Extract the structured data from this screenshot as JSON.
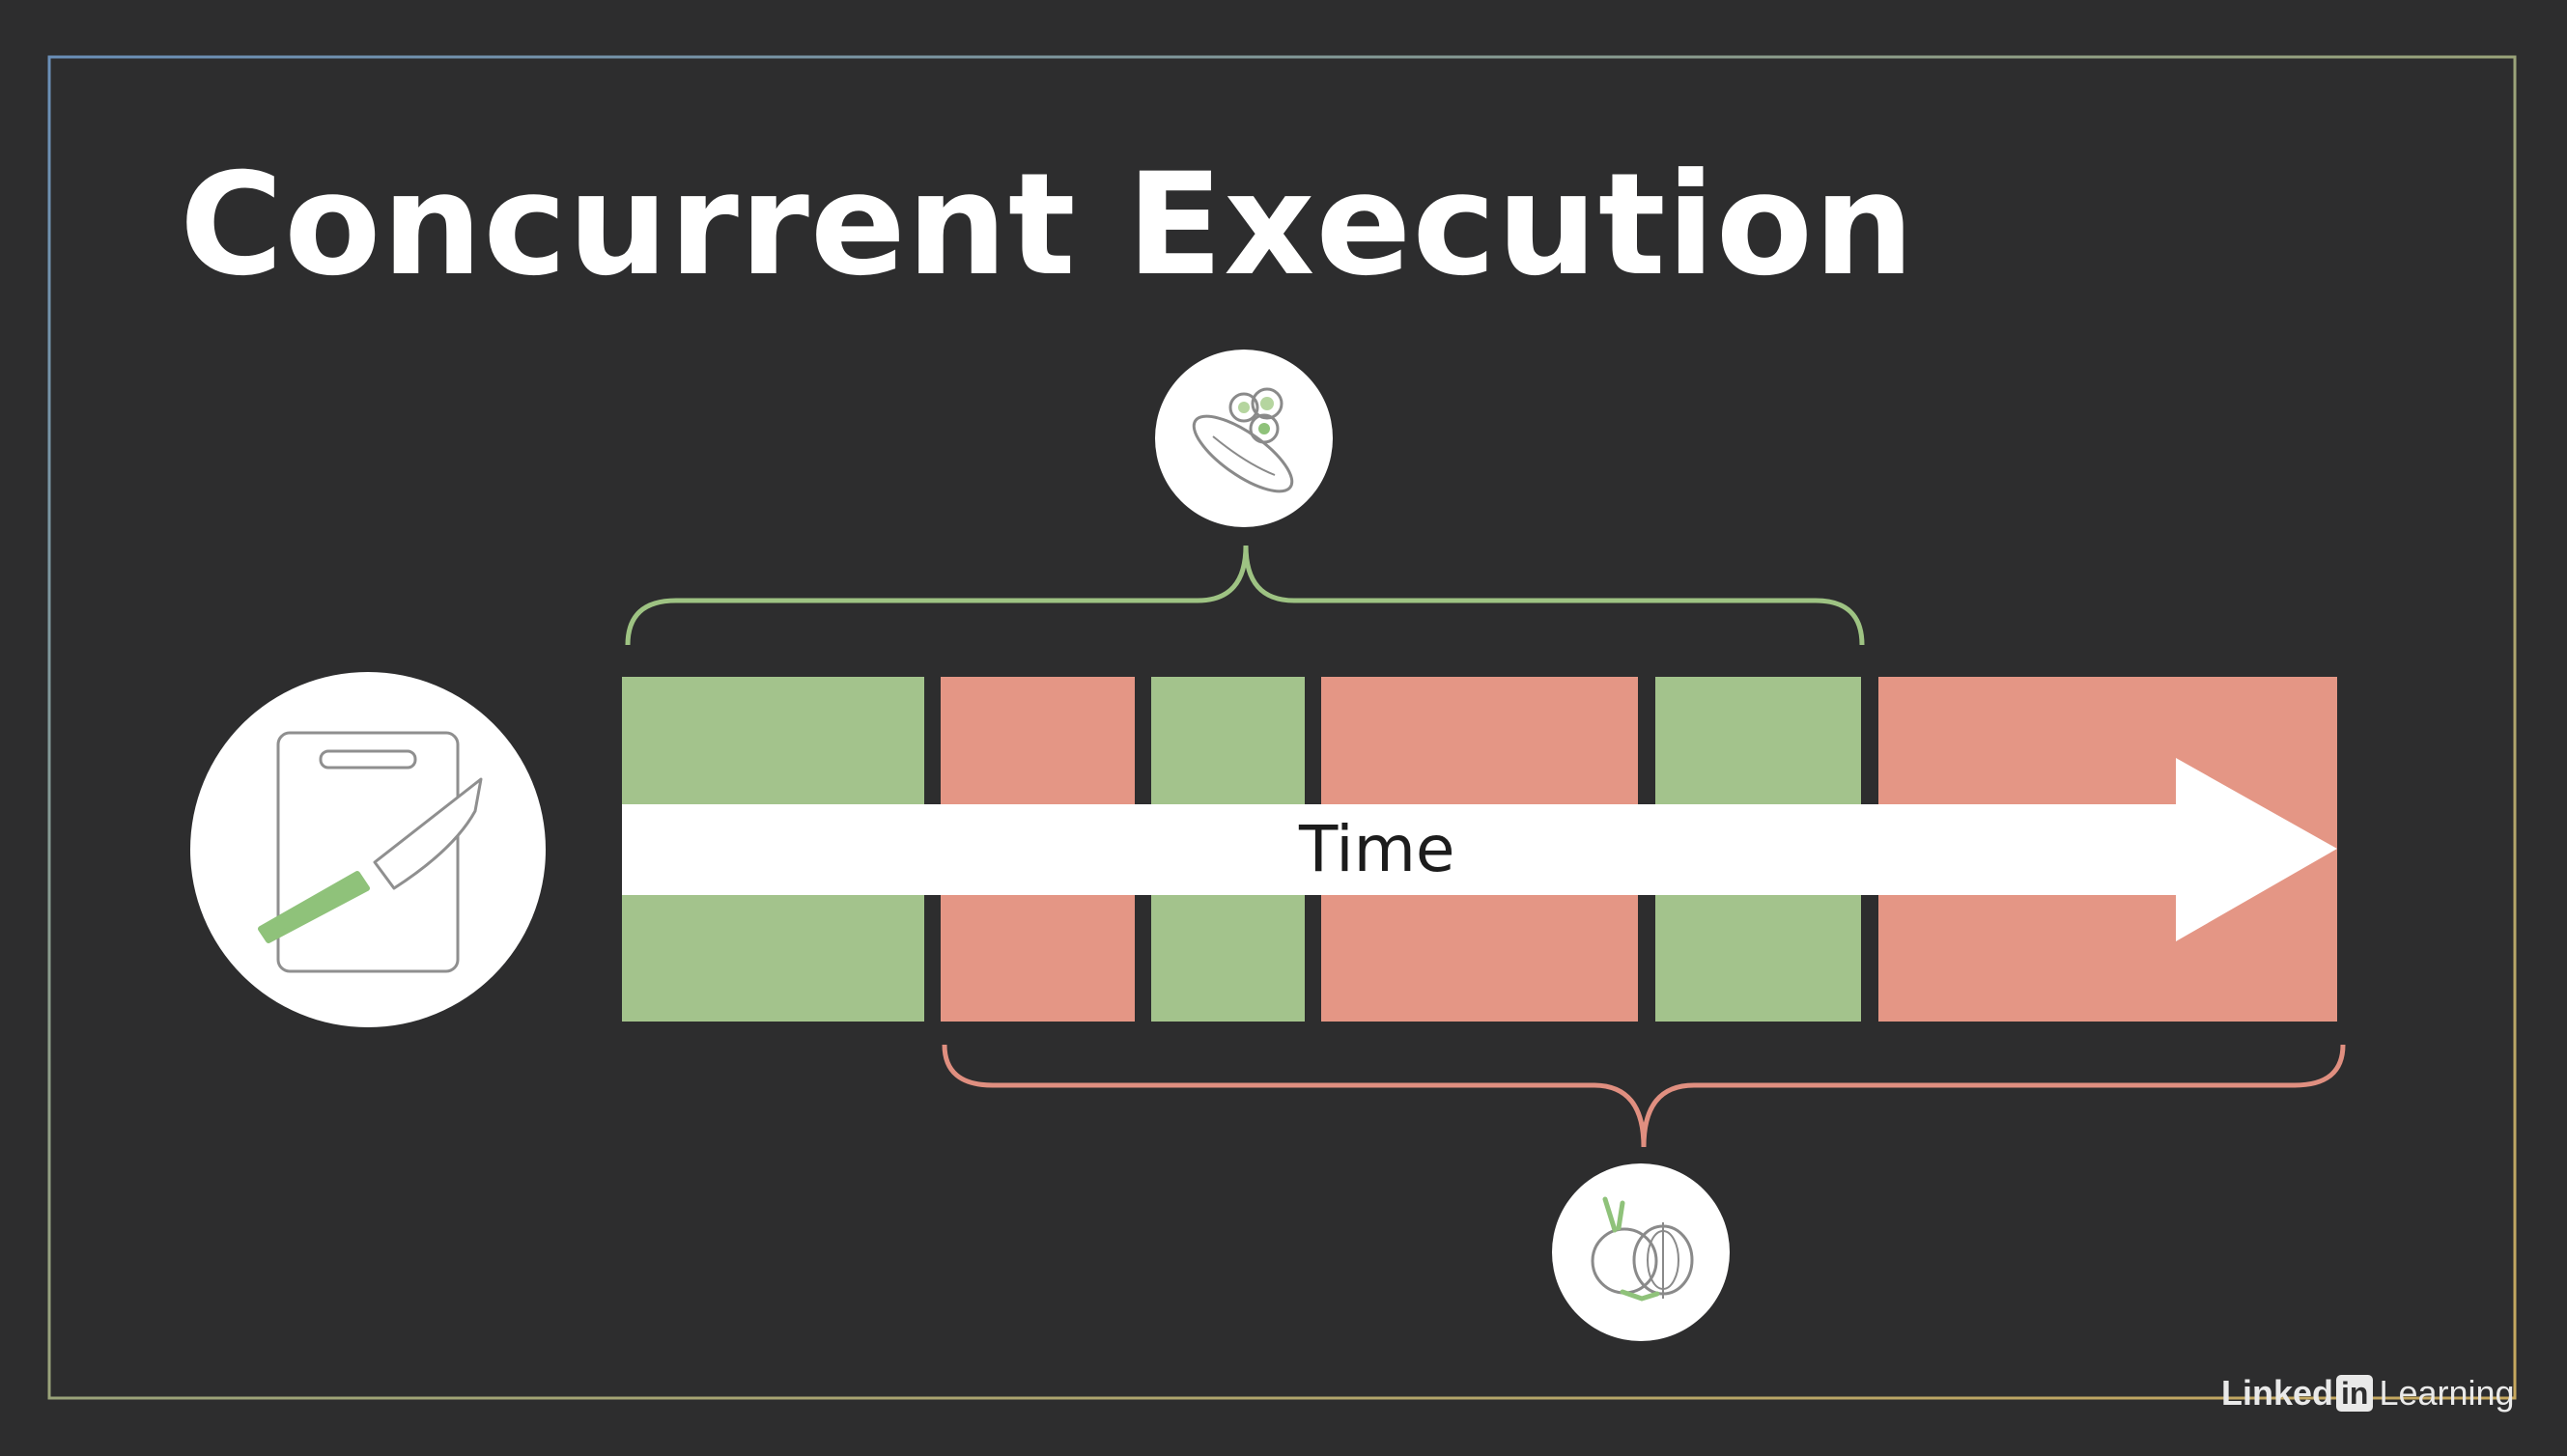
{
  "slide": {
    "title": "Concurrent Execution",
    "time_label": "Time"
  },
  "brand": {
    "name_part1": "Linked",
    "name_badge": "in",
    "name_part2": "Learning"
  },
  "colors": {
    "background": "#2d2d2e",
    "green_task": "#a3c38c",
    "red_task": "#e49685",
    "arrow": "#ffffff",
    "green_brace": "#9ec383",
    "red_brace": "#e08f80"
  },
  "icons": {
    "main": "cutting-board-knife-icon",
    "green_task": "cucumber-icon",
    "red_task": "onion-icon"
  },
  "timeline": {
    "segments": [
      {
        "task": "cucumber",
        "color": "green"
      },
      {
        "task": "onion",
        "color": "red"
      },
      {
        "task": "cucumber",
        "color": "green"
      },
      {
        "task": "onion",
        "color": "red"
      },
      {
        "task": "cucumber",
        "color": "green"
      },
      {
        "task": "onion",
        "color": "red"
      }
    ]
  }
}
